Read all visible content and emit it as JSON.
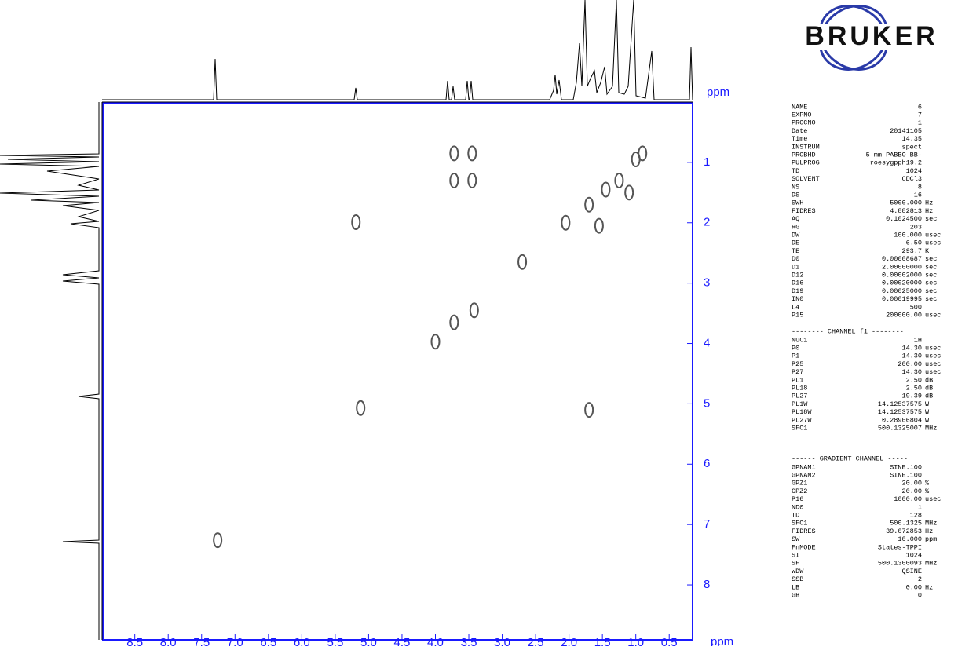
{
  "chart_data": {
    "type": "scatter",
    "x_label": "ppm",
    "y_label": "ppm",
    "x": [
      7.26,
      5.12,
      5.19,
      1.7,
      3.72,
      3.42,
      3.72,
      3.72,
      3.45,
      3.45,
      2.7,
      4.0,
      2.05,
      1.7,
      1.45,
      1.25,
      1.0,
      0.9,
      1.55,
      1.1
    ],
    "values": [
      7.26,
      5.07,
      1.99,
      5.1,
      3.65,
      3.45,
      0.85,
      1.3,
      0.85,
      1.3,
      2.65,
      3.97,
      2.0,
      1.7,
      1.45,
      1.3,
      0.95,
      0.85,
      2.05,
      1.5
    ],
    "color": "#555555",
    "xlim": [
      8.99,
      0.15
    ],
    "ylim": [
      0,
      8.91
    ],
    "xticks": [
      8.5,
      {
        "value": 8,
        "label": "8.0"
      },
      7.5,
      {
        "value": 7,
        "label": "7.0"
      },
      6.5,
      {
        "value": 6,
        "label": "6.0"
      },
      5.5,
      {
        "value": 5,
        "label": "5.0"
      },
      4.5,
      {
        "value": 4,
        "label": "4.0"
      },
      3.5,
      {
        "value": 3,
        "label": "3.0"
      },
      2.5,
      {
        "value": 2,
        "label": "2.0"
      },
      1.5,
      {
        "value": 1,
        "label": "1.0"
      },
      0.5
    ],
    "yticks": [
      1,
      2,
      3,
      4,
      5,
      6,
      7,
      8
    ]
  },
  "logo": "BRUKER",
  "parameters": [
    {
      "rows": [
        [
          "NAME",
          "6"
        ],
        [
          "EXPNO",
          "7"
        ],
        [
          "PROCNO",
          "1"
        ],
        [
          "Date_",
          "20141105"
        ],
        [
          "Time",
          "14.35"
        ],
        [
          "INSTRUM",
          "spect"
        ],
        [
          "PROBHD",
          "5 mm PABBO BB-"
        ],
        [
          "PULPROG",
          "roesygpph19.2"
        ],
        [
          "TD",
          "1024"
        ],
        [
          "SOLVENT",
          "CDCl3"
        ],
        [
          "NS",
          "8"
        ],
        [
          "DS",
          "16"
        ],
        [
          "SWH",
          "5000.000",
          "Hz"
        ],
        [
          "FIDRES",
          "4.882813",
          "Hz"
        ],
        [
          "AQ",
          "0.1024500",
          "sec"
        ],
        [
          "RG",
          "203"
        ],
        [
          "DW",
          "100.000",
          "usec"
        ],
        [
          "DE",
          "6.50",
          "usec"
        ],
        [
          "TE",
          "293.7",
          "K"
        ],
        [
          "D0",
          "0.00008687",
          "sec"
        ],
        [
          "D1",
          "2.00000000",
          "sec"
        ],
        [
          "D12",
          "0.00002000",
          "sec"
        ],
        [
          "D16",
          "0.00020000",
          "sec"
        ],
        [
          "D19",
          "0.00025000",
          "sec"
        ],
        [
          "IN0",
          "0.00019995",
          "sec"
        ],
        [
          "L4",
          "500"
        ],
        [
          "P15",
          "200000.00",
          "usec"
        ]
      ]
    },
    {
      "heading": "-------- CHANNEL f1 --------",
      "rows": [
        [
          "NUC1",
          "1H"
        ],
        [
          "P0",
          "14.30",
          "usec"
        ],
        [
          "P1",
          "14.30",
          "usec"
        ],
        [
          "P25",
          "200.00",
          "usec"
        ],
        [
          "P27",
          "14.30",
          "usec"
        ],
        [
          "PL1",
          "2.50",
          "dB"
        ],
        [
          "PL18",
          "2.50",
          "dB"
        ],
        [
          "PL27",
          "19.39",
          "dB"
        ],
        [
          "PL1W",
          "14.12537575",
          "W"
        ],
        [
          "PL18W",
          "14.12537575",
          "W"
        ],
        [
          "PL27W",
          "0.28906804",
          "W"
        ],
        [
          "SFO1",
          "500.1325007",
          "MHz"
        ]
      ]
    },
    {
      "heading": "------ GRADIENT CHANNEL -----",
      "rows": [
        [
          "GPNAM1",
          "SINE.100"
        ],
        [
          "GPNAM2",
          "SINE.100"
        ],
        [
          "GPZ1",
          "20.00",
          "%"
        ],
        [
          "GPZ2",
          "20.00",
          "%"
        ],
        [
          "P16",
          "1000.00",
          "usec"
        ],
        [
          "ND0",
          "1"
        ],
        [
          "TD",
          "128"
        ],
        [
          "SFO1",
          "500.1325",
          "MHz"
        ],
        [
          "FIDRES",
          "39.072853",
          "Hz"
        ],
        [
          "SW",
          "10.000",
          "ppm"
        ],
        [
          "FnMODE",
          "States-TPPI"
        ],
        [
          "SI",
          "1024"
        ],
        [
          "SF",
          "500.1300093",
          "MHz"
        ],
        [
          "WDW",
          "QSINE"
        ],
        [
          "SSB",
          "2"
        ],
        [
          "LB",
          "0.00",
          "Hz"
        ],
        [
          "GB",
          "0"
        ]
      ]
    }
  ]
}
